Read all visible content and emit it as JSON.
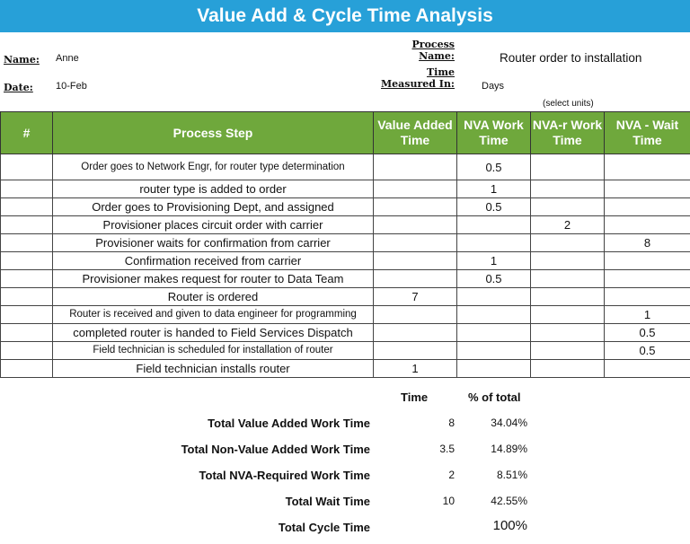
{
  "title": "Value Add & Cycle Time Analysis",
  "info": {
    "name_label": "Name:",
    "name": "Anne",
    "date_label": "Date:",
    "date": "10-Feb",
    "process_label_1": "Process",
    "process_label_2": "Name:",
    "process_name": "Router order to installation",
    "time_label_1": "Time",
    "time_label_2": "Measured In:",
    "units": "Days",
    "units_hint": "(select units)"
  },
  "table": {
    "headers": [
      "#",
      "Process Step",
      "Value Added Time",
      "NVA Work Time",
      "NVA-r Work Time",
      "NVA - Wait Time"
    ],
    "rows": [
      {
        "num": "",
        "step": "Order goes to Network Engr, for router type determination",
        "va": "",
        "nva": "0.5",
        "nvar": "",
        "wait": ""
      },
      {
        "num": "",
        "step": "router type is added to order",
        "va": "",
        "nva": "1",
        "nvar": "",
        "wait": ""
      },
      {
        "num": "",
        "step": "Order goes to Provisioning Dept, and assigned",
        "va": "",
        "nva": "0.5",
        "nvar": "",
        "wait": ""
      },
      {
        "num": "",
        "step": "Provisioner places circuit order with carrier",
        "va": "",
        "nva": "",
        "nvar": "2",
        "wait": ""
      },
      {
        "num": "",
        "step": "Provisioner waits for confirmation from carrier",
        "va": "",
        "nva": "",
        "nvar": "",
        "wait": "8"
      },
      {
        "num": "",
        "step": "Confirmation received from carrier",
        "va": "",
        "nva": "1",
        "nvar": "",
        "wait": ""
      },
      {
        "num": "",
        "step": "Provisioner makes request for router to Data Team",
        "va": "",
        "nva": "0.5",
        "nvar": "",
        "wait": ""
      },
      {
        "num": "",
        "step": "Router is ordered",
        "va": "7",
        "nva": "",
        "nvar": "",
        "wait": ""
      },
      {
        "num": "",
        "step": "Router is received and given to data engineer for programming",
        "va": "",
        "nva": "",
        "nvar": "",
        "wait": "1"
      },
      {
        "num": "",
        "step": "completed router is handed to Field Services Dispatch",
        "va": "",
        "nva": "",
        "nvar": "",
        "wait": "0.5"
      },
      {
        "num": "",
        "step": "Field technician is scheduled for installation of router",
        "va": "",
        "nva": "",
        "nvar": "",
        "wait": "0.5"
      },
      {
        "num": "",
        "step": "Field technician installs router",
        "va": "1",
        "nva": "",
        "nvar": "",
        "wait": ""
      }
    ]
  },
  "summary": {
    "time_header": "Time",
    "pct_header": "% of total",
    "rows": [
      {
        "label": "Total Value Added Work Time",
        "time": "8",
        "pct": "34.04%"
      },
      {
        "label": "Total Non-Value Added Work Time",
        "time": "3.5",
        "pct": "14.89%"
      },
      {
        "label": "Total NVA-Required Work Time",
        "time": "2",
        "pct": "8.51%"
      },
      {
        "label": "Total Wait Time",
        "time": "10",
        "pct": "42.55%"
      },
      {
        "label": "Total Cycle Time",
        "time": "",
        "pct": "100%"
      }
    ]
  },
  "colors": {
    "title_bar": "#27a0d8",
    "header": "#6fa83c"
  }
}
